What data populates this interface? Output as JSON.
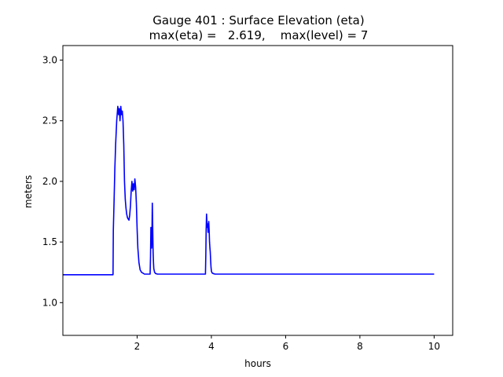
{
  "chart_data": {
    "type": "line",
    "title": "Gauge 401 : Surface Elevation (eta)",
    "subtitle": "max(eta) =   2.619,    max(level) = 7",
    "xlabel": "hours",
    "ylabel": "meters",
    "xlim": [
      0.0,
      10.5
    ],
    "ylim": [
      0.73,
      3.12
    ],
    "xticks": [
      2,
      4,
      6,
      8,
      10
    ],
    "xtick_labels": [
      "2",
      "4",
      "6",
      "8",
      "10"
    ],
    "yticks": [
      1.0,
      1.5,
      2.0,
      2.5,
      3.0
    ],
    "ytick_labels": [
      "1.0",
      "1.5",
      "2.0",
      "2.5",
      "3.0"
    ],
    "grid": false,
    "series": [
      {
        "color": "#0000ff",
        "x": [
          0.0,
          1.35,
          1.36,
          1.38,
          1.4,
          1.42,
          1.45,
          1.48,
          1.5,
          1.52,
          1.54,
          1.56,
          1.58,
          1.6,
          1.62,
          1.64,
          1.66,
          1.68,
          1.7,
          1.72,
          1.74,
          1.76,
          1.78,
          1.8,
          1.82,
          1.84,
          1.86,
          1.88,
          1.9,
          1.92,
          1.94,
          1.96,
          1.98,
          2.0,
          2.02,
          2.05,
          2.08,
          2.12,
          2.2,
          2.35,
          2.36,
          2.37,
          2.38,
          2.39,
          2.4,
          2.41,
          2.42,
          2.43,
          2.44,
          2.45,
          2.47,
          2.5,
          2.55,
          2.65,
          3.84,
          3.85,
          3.86,
          3.87,
          3.88,
          3.89,
          3.9,
          3.91,
          3.92,
          3.93,
          3.94,
          3.95,
          3.96,
          3.97,
          3.98,
          3.99,
          4.0,
          4.02,
          4.05,
          4.1,
          4.2,
          10.0
        ],
        "y": [
          1.23,
          1.23,
          1.6,
          1.85,
          2.1,
          2.3,
          2.5,
          2.619,
          2.55,
          2.6,
          2.5,
          2.619,
          2.55,
          2.58,
          2.5,
          2.3,
          2.0,
          1.85,
          1.78,
          1.73,
          1.7,
          1.69,
          1.68,
          1.72,
          1.8,
          1.92,
          2.0,
          1.92,
          1.98,
          1.93,
          2.02,
          1.95,
          1.82,
          1.6,
          1.45,
          1.33,
          1.27,
          1.25,
          1.235,
          1.235,
          1.38,
          1.62,
          1.55,
          1.45,
          1.6,
          1.82,
          1.62,
          1.42,
          1.33,
          1.28,
          1.25,
          1.24,
          1.235,
          1.235,
          1.235,
          1.4,
          1.6,
          1.73,
          1.66,
          1.62,
          1.65,
          1.58,
          1.62,
          1.67,
          1.6,
          1.5,
          1.45,
          1.42,
          1.35,
          1.29,
          1.26,
          1.245,
          1.24,
          1.235,
          1.235,
          1.235
        ]
      }
    ]
  }
}
